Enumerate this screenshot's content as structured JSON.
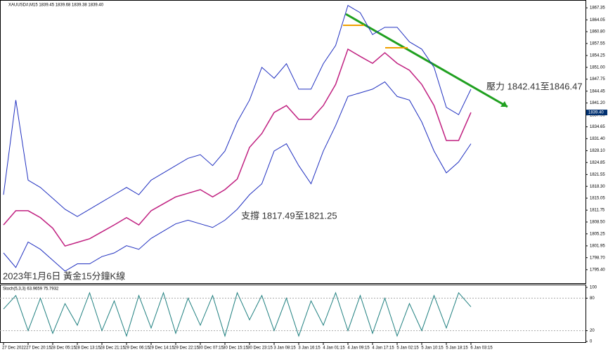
{
  "chart_data": {
    "type": "line",
    "header": "XAUUSD#,M15 1839.45 1839.68 1839.38 1839.40",
    "title": "2023年1月6日 黃金15分鐘K線",
    "support_label": "支撐 1817.49至1821.25",
    "resistance_label": "壓力 1842.41至1846.47",
    "price_label": "1839.40",
    "categories": [
      "27 Dec 2022",
      null,
      "27 Dec 20:15",
      null,
      "28 Dec 05:15",
      null,
      "28 Dec 13:15",
      null,
      "28 Dec 21:15",
      null,
      "29 Dec 06:15",
      null,
      "29 Dec 14:15",
      null,
      "29 Dec 22:15",
      null,
      "30 Dec 07:15",
      null,
      "30 Dec 15:15",
      null,
      "30 Dec 23:15",
      null,
      "3 Jan 08:15",
      null,
      "3 Jan 16:15",
      null,
      "4 Jan 01:15",
      null,
      "4 Jan 09:15",
      null,
      "4 Jan 17:15",
      null,
      "5 Jan 02:15",
      null,
      "5 Jan 10:15",
      null,
      "5 Jan 18:15",
      null,
      "6 Jan 03:15"
    ],
    "series": [
      {
        "color": "#c02080",
        "values": [
          1807.7,
          1811.6,
          1811.6,
          1809.7,
          1806.8,
          1801.9,
          1802.9,
          1803.9,
          1805.8,
          1807.7,
          1809.7,
          1807.7,
          1811.6,
          1813.5,
          1815.4,
          1816.4,
          1817.4,
          1815.4,
          1817.4,
          1820.3,
          1829,
          1832.8,
          1838.6,
          1840.5,
          1836.7,
          1836.7,
          1840.5,
          1846.3,
          1856,
          1854,
          1852.1,
          1855,
          1852.1,
          1850.2,
          1846.3,
          1840.5,
          1830.9,
          1830.9,
          1838.6
        ]
      },
      {
        "color": "#2030c0",
        "values": [
          1816,
          1842,
          1820,
          1818,
          1815,
          1812,
          1810,
          1812,
          1814,
          1816,
          1818,
          1816,
          1820,
          1822,
          1824,
          1826,
          1827,
          1824,
          1828,
          1836,
          1842,
          1851,
          1848,
          1852,
          1845,
          1845,
          1852,
          1857,
          1868,
          1866,
          1860,
          1862,
          1862,
          1858,
          1856,
          1851,
          1840,
          1838,
          1845
        ]
      },
      {
        "color": "#2030c0",
        "values": [
          1800,
          1796,
          1803,
          1801,
          1798,
          1795,
          1797,
          1797,
          1799,
          1800,
          1802,
          1801,
          1804,
          1806,
          1808,
          1809,
          1808,
          1807,
          1809,
          1812,
          1816,
          1819,
          1828,
          1830,
          1824,
          1819,
          1828,
          1835,
          1843,
          1844,
          1845,
          1847,
          1843,
          1842,
          1836,
          1828,
          1822,
          1825,
          1830
        ]
      }
    ],
    "ylim": [
      1791.7,
      1869.5
    ],
    "yticks": [
      {
        "value": 1867.35,
        "label": "1867.35"
      },
      {
        "value": 1864.05,
        "label": "1864.05"
      },
      {
        "value": 1860.8,
        "label": "1860.80"
      },
      {
        "value": 1857.55,
        "label": "1857.55"
      },
      {
        "value": 1854.25,
        "label": "1854.25"
      },
      {
        "value": 1851,
        "label": "1851.00"
      },
      {
        "value": 1847.75,
        "label": "1847.75"
      },
      {
        "value": 1844.45,
        "label": "1844.45"
      },
      {
        "value": 1841.2,
        "label": "1841.20"
      },
      {
        "value": 1837.9,
        "label": "1837.90"
      },
      {
        "value": 1834.65,
        "label": "1834.65"
      },
      {
        "value": 1831.4,
        "label": "1831.40"
      },
      {
        "value": 1828.1,
        "label": "1828.10"
      },
      {
        "value": 1824.85,
        "label": "1824.85"
      },
      {
        "value": 1821.55,
        "label": "1821.55"
      },
      {
        "value": 1818.3,
        "label": "1818.30"
      },
      {
        "value": 1815.05,
        "label": "1815.05"
      },
      {
        "value": 1811.75,
        "label": "1811.75"
      },
      {
        "value": 1808.5,
        "label": "1808.50"
      },
      {
        "value": 1805.25,
        "label": "1805.25"
      },
      {
        "value": 1801.95,
        "label": "1801.95"
      },
      {
        "value": 1798.7,
        "label": "1798.70"
      },
      {
        "value": 1795.4,
        "label": "1795.40"
      }
    ],
    "stoch": {
      "title": "Stoch(5,3,3) 63.9659 75.7932",
      "color": "#208080",
      "values": [
        60,
        85,
        20,
        80,
        15,
        70,
        30,
        90,
        20,
        75,
        10,
        85,
        25,
        90,
        15,
        80,
        30,
        85,
        10,
        90,
        40,
        85,
        20,
        80,
        10,
        75,
        30,
        90,
        20,
        85,
        15,
        80,
        10,
        70,
        20,
        85,
        25,
        90,
        64
      ],
      "ylim": [
        0,
        100
      ],
      "yticks": [
        100,
        80,
        20,
        0
      ]
    }
  }
}
